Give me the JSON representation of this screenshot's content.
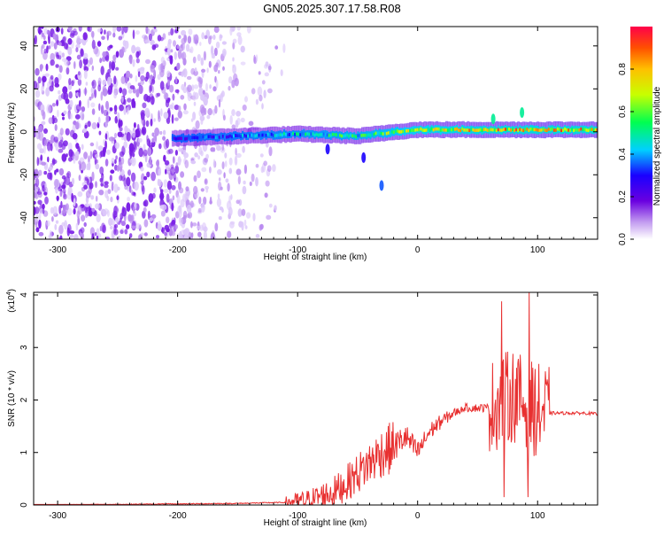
{
  "title": "GN05.2025.307.17.58.R08",
  "colorbar": {
    "label": "Normalized spectral amplitude",
    "ticks": [
      "0.0",
      "0.2",
      "0.4",
      "0.6",
      "0.8"
    ],
    "tick_values": [
      0.0,
      0.2,
      0.4,
      0.6,
      0.8
    ],
    "range": [
      0,
      1
    ],
    "colormap": [
      "#ffffff",
      "#8a2be2",
      "#2200ff",
      "#00ffff",
      "#00ff44",
      "#ffff00",
      "#ff8800",
      "#ff0044"
    ]
  },
  "chart_data": [
    {
      "type": "heatmap",
      "title": "",
      "xlabel": "Height of straight line (km)",
      "ylabel": "Frequency (Hz)",
      "xlim": [
        -320,
        150
      ],
      "ylim": [
        -50,
        49
      ],
      "x_ticks": [
        -300,
        -200,
        -100,
        0,
        100
      ],
      "x_tick_labels": [
        "-300",
        "-200",
        "-100",
        "0",
        "100"
      ],
      "y_ticks": [
        -40,
        -20,
        0,
        20,
        40
      ],
      "y_tick_labels": [
        "-40",
        "-20",
        "0",
        "20",
        "40"
      ],
      "ridge": {
        "x": [
          -200,
          -150,
          -100,
          -50,
          -20,
          0,
          30,
          60,
          80,
          100,
          150
        ],
        "freq": [
          -3,
          -2,
          -1,
          -2,
          0,
          1,
          1,
          1,
          1,
          1,
          1
        ],
        "amplitude": [
          0.35,
          0.45,
          0.55,
          0.65,
          0.75,
          0.85,
          0.9,
          0.95,
          0.95,
          0.95,
          0.95
        ]
      },
      "features": [
        {
          "x": -75,
          "freq": -8,
          "amplitude": 0.3
        },
        {
          "x": -45,
          "freq": -12,
          "amplitude": 0.3
        },
        {
          "x": -30,
          "freq": -25,
          "amplitude": 0.35
        },
        {
          "x": 63,
          "freq": 6,
          "amplitude": 0.5
        },
        {
          "x": 87,
          "freq": 9,
          "amplitude": 0.5
        }
      ],
      "noise_region": {
        "x_range": [
          -320,
          -110
        ],
        "freq_range": [
          -50,
          49
        ]
      }
    },
    {
      "type": "line",
      "title": "",
      "xlabel": "Height of straight line (km)",
      "ylabel": "SNR (10 * v/v)",
      "scale_label": "(x10",
      "scale_exponent": "4",
      "color": "#e83030",
      "xlim": [
        -320,
        150
      ],
      "ylim": [
        0,
        4.05
      ],
      "x_ticks": [
        -300,
        -200,
        -100,
        0,
        100
      ],
      "x_tick_labels": [
        "-300",
        "-200",
        "-100",
        "0",
        "100"
      ],
      "y_ticks": [
        0,
        1,
        2,
        3,
        4
      ],
      "y_tick_labels": [
        "0",
        "1",
        "2",
        "3",
        "4"
      ],
      "series": [
        {
          "x": [
            -320,
            -250,
            -200,
            -150,
            -110,
            -90,
            -70,
            -60,
            -50,
            -40,
            -30,
            -20,
            -10,
            0,
            10,
            20,
            30,
            40,
            50,
            60,
            70,
            80,
            90,
            100,
            110,
            120,
            130,
            140,
            150
          ],
          "values": [
            0.0,
            0.01,
            0.02,
            0.03,
            0.05,
            0.1,
            0.25,
            0.4,
            0.6,
            0.8,
            1.0,
            1.1,
            1.3,
            1.0,
            1.4,
            1.6,
            1.75,
            1.85,
            1.85,
            1.85,
            2.0,
            2.1,
            1.9,
            1.8,
            1.75,
            1.75,
            1.75,
            1.75,
            1.73
          ]
        }
      ],
      "annotations": [
        {
          "x": 70,
          "y": 3.88,
          "text": ""
        },
        {
          "x": 93,
          "y": 4.05,
          "text": ""
        },
        {
          "x": 72,
          "y": 0.15,
          "text": ""
        },
        {
          "x": 92,
          "y": 0.15,
          "text": ""
        }
      ]
    }
  ]
}
